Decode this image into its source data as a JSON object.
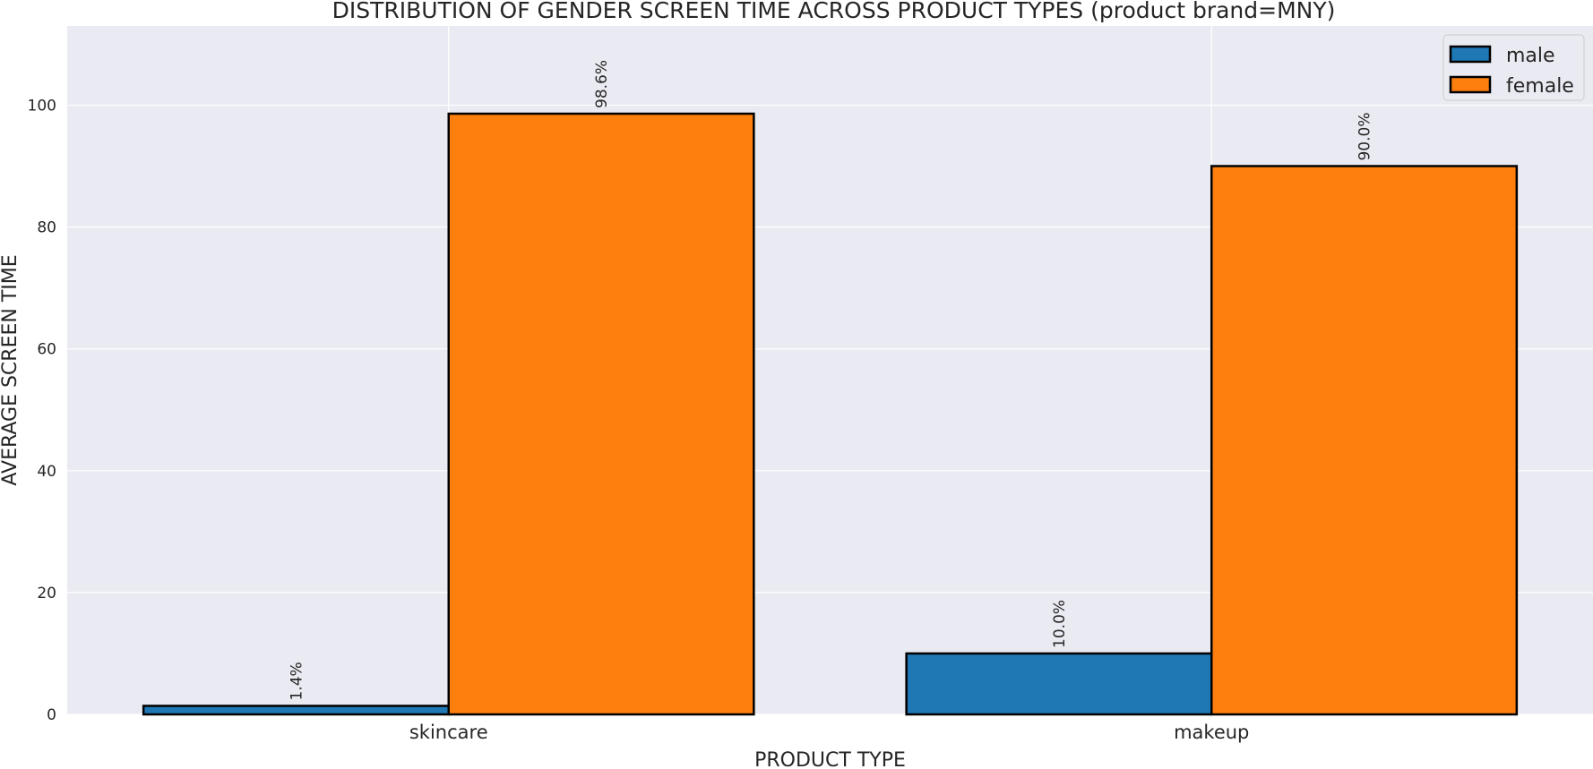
{
  "chart_data": {
    "type": "bar",
    "title": "DISTRIBUTION OF GENDER SCREEN TIME ACROSS PRODUCT TYPES (product brand=MNY)",
    "xlabel": "PRODUCT TYPE",
    "ylabel": "AVERAGE SCREEN TIME",
    "categories": [
      "skincare",
      "makeup"
    ],
    "series": [
      {
        "name": "male",
        "values": [
          1.4,
          10.0
        ],
        "labels": [
          "1.4%",
          "10.0%"
        ],
        "color": "#1f77b4"
      },
      {
        "name": "female",
        "values": [
          98.6,
          90.0
        ],
        "labels": [
          "98.6%",
          "90.0%"
        ],
        "color": "#ff7f0e"
      }
    ],
    "ylim": [
      0,
      113
    ],
    "yticks": [
      0,
      20,
      40,
      60,
      80,
      100
    ],
    "grid": true,
    "legend": "top-right",
    "background": "#eaeaf2",
    "bar_edge_color": "#000000"
  }
}
